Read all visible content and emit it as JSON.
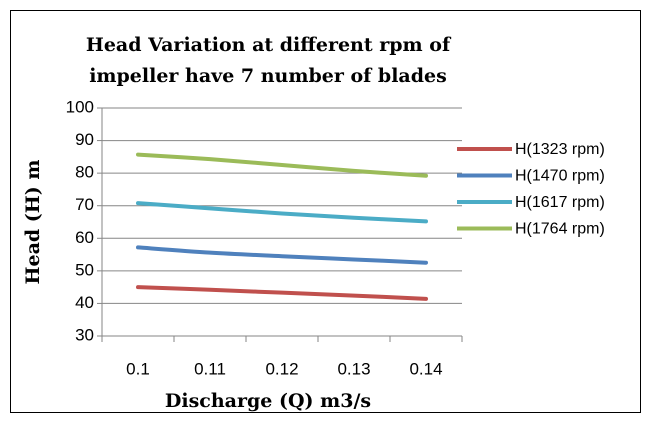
{
  "chart_data": {
    "type": "line",
    "title": [
      "Head Variation at different rpm of",
      "impeller have 7 number of blades"
    ],
    "x_label": "Discharge (Q) m3/s",
    "y_label": "Head (H) m",
    "categories": [
      "0.1",
      "0.11",
      "0.12",
      "0.13",
      "0.14"
    ],
    "series": [
      {
        "name": "H(1323 rpm)",
        "color": "#c0504d",
        "values": [
          45,
          44.2,
          43.3,
          42.4,
          41.4
        ]
      },
      {
        "name": "H(1470 rpm)",
        "color": "#4f81bd",
        "values": [
          57.2,
          55.6,
          54.5,
          53.5,
          52.5
        ]
      },
      {
        "name": "H(1617 rpm)",
        "color": "#4bacc6",
        "values": [
          70.8,
          69.2,
          67.6,
          66.3,
          65.2
        ]
      },
      {
        "name": "H(1764 rpm)",
        "color": "#9bbb59",
        "values": [
          85.7,
          84.3,
          82.5,
          80.7,
          79.2
        ]
      }
    ],
    "ylim": [
      30,
      100
    ],
    "yticks": [
      30,
      40,
      50,
      60,
      70,
      80,
      90,
      100
    ],
    "grid": true,
    "smooth": true,
    "legend": "right"
  }
}
